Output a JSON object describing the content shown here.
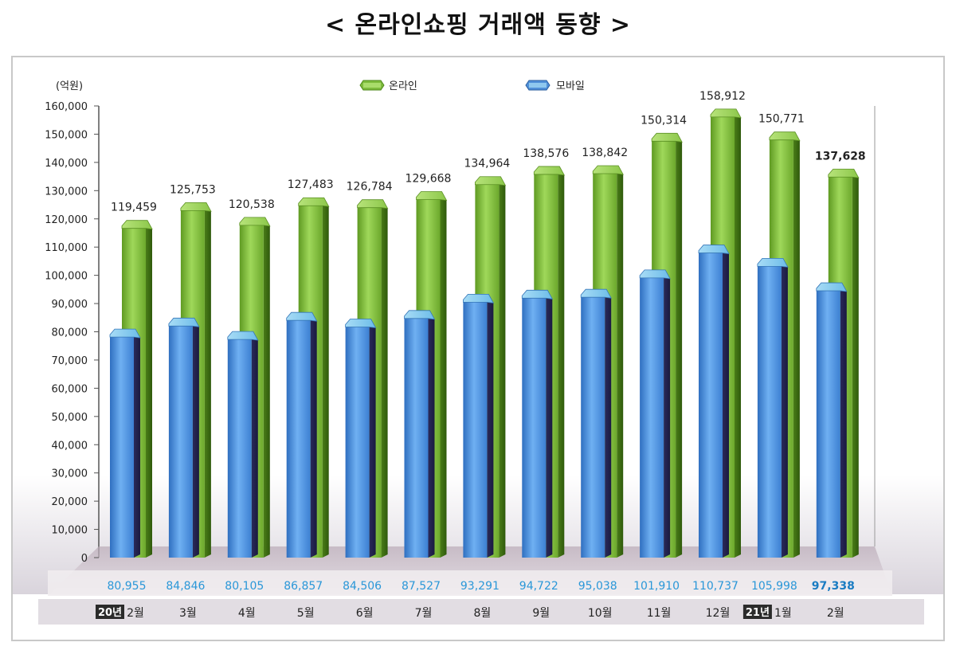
{
  "title": "< 온라인쇼핑 거래액 동향 >",
  "chart_data": {
    "type": "bar",
    "title": "< 온라인쇼핑 거래액 동향 >",
    "unit": "(억원)",
    "ylim": [
      0,
      160000
    ],
    "yticks": [
      "0",
      "10,000",
      "20,000",
      "30,000",
      "40,000",
      "50,000",
      "60,000",
      "70,000",
      "80,000",
      "90,000",
      "100,000",
      "110,000",
      "120,000",
      "130,000",
      "140,000",
      "150,000",
      "160,000"
    ],
    "categories": [
      "2월",
      "3월",
      "4월",
      "5월",
      "6월",
      "7월",
      "8월",
      "9월",
      "10월",
      "11월",
      "12월",
      "1월",
      "2월"
    ],
    "year_markers": [
      {
        "category_index": 0,
        "label": "20년"
      },
      {
        "category_index": 11,
        "label": "21년"
      }
    ],
    "legend_position": "top-center",
    "series": [
      {
        "name": "온라인",
        "color": "#7dbb3c",
        "values": [
          119459,
          125753,
          120538,
          127483,
          126784,
          129668,
          134964,
          138576,
          138842,
          150314,
          158912,
          150771,
          137628
        ],
        "labels": [
          "119,459",
          "125,753",
          "120,538",
          "127,483",
          "126,784",
          "129,668",
          "134,964",
          "138,576",
          "138,842",
          "150,314",
          "158,912",
          "150,771",
          "137,628"
        ]
      },
      {
        "name": "모바일",
        "color": "#4f8fd8",
        "values": [
          80955,
          84846,
          80105,
          86857,
          84506,
          87527,
          93291,
          94722,
          95038,
          101910,
          110737,
          105998,
          97338
        ],
        "labels": [
          "80,955",
          "84,846",
          "80,105",
          "86,857",
          "84,506",
          "87,527",
          "93,291",
          "94,722",
          "95,038",
          "101,910",
          "110,737",
          "105,998",
          "97,338"
        ]
      }
    ]
  }
}
